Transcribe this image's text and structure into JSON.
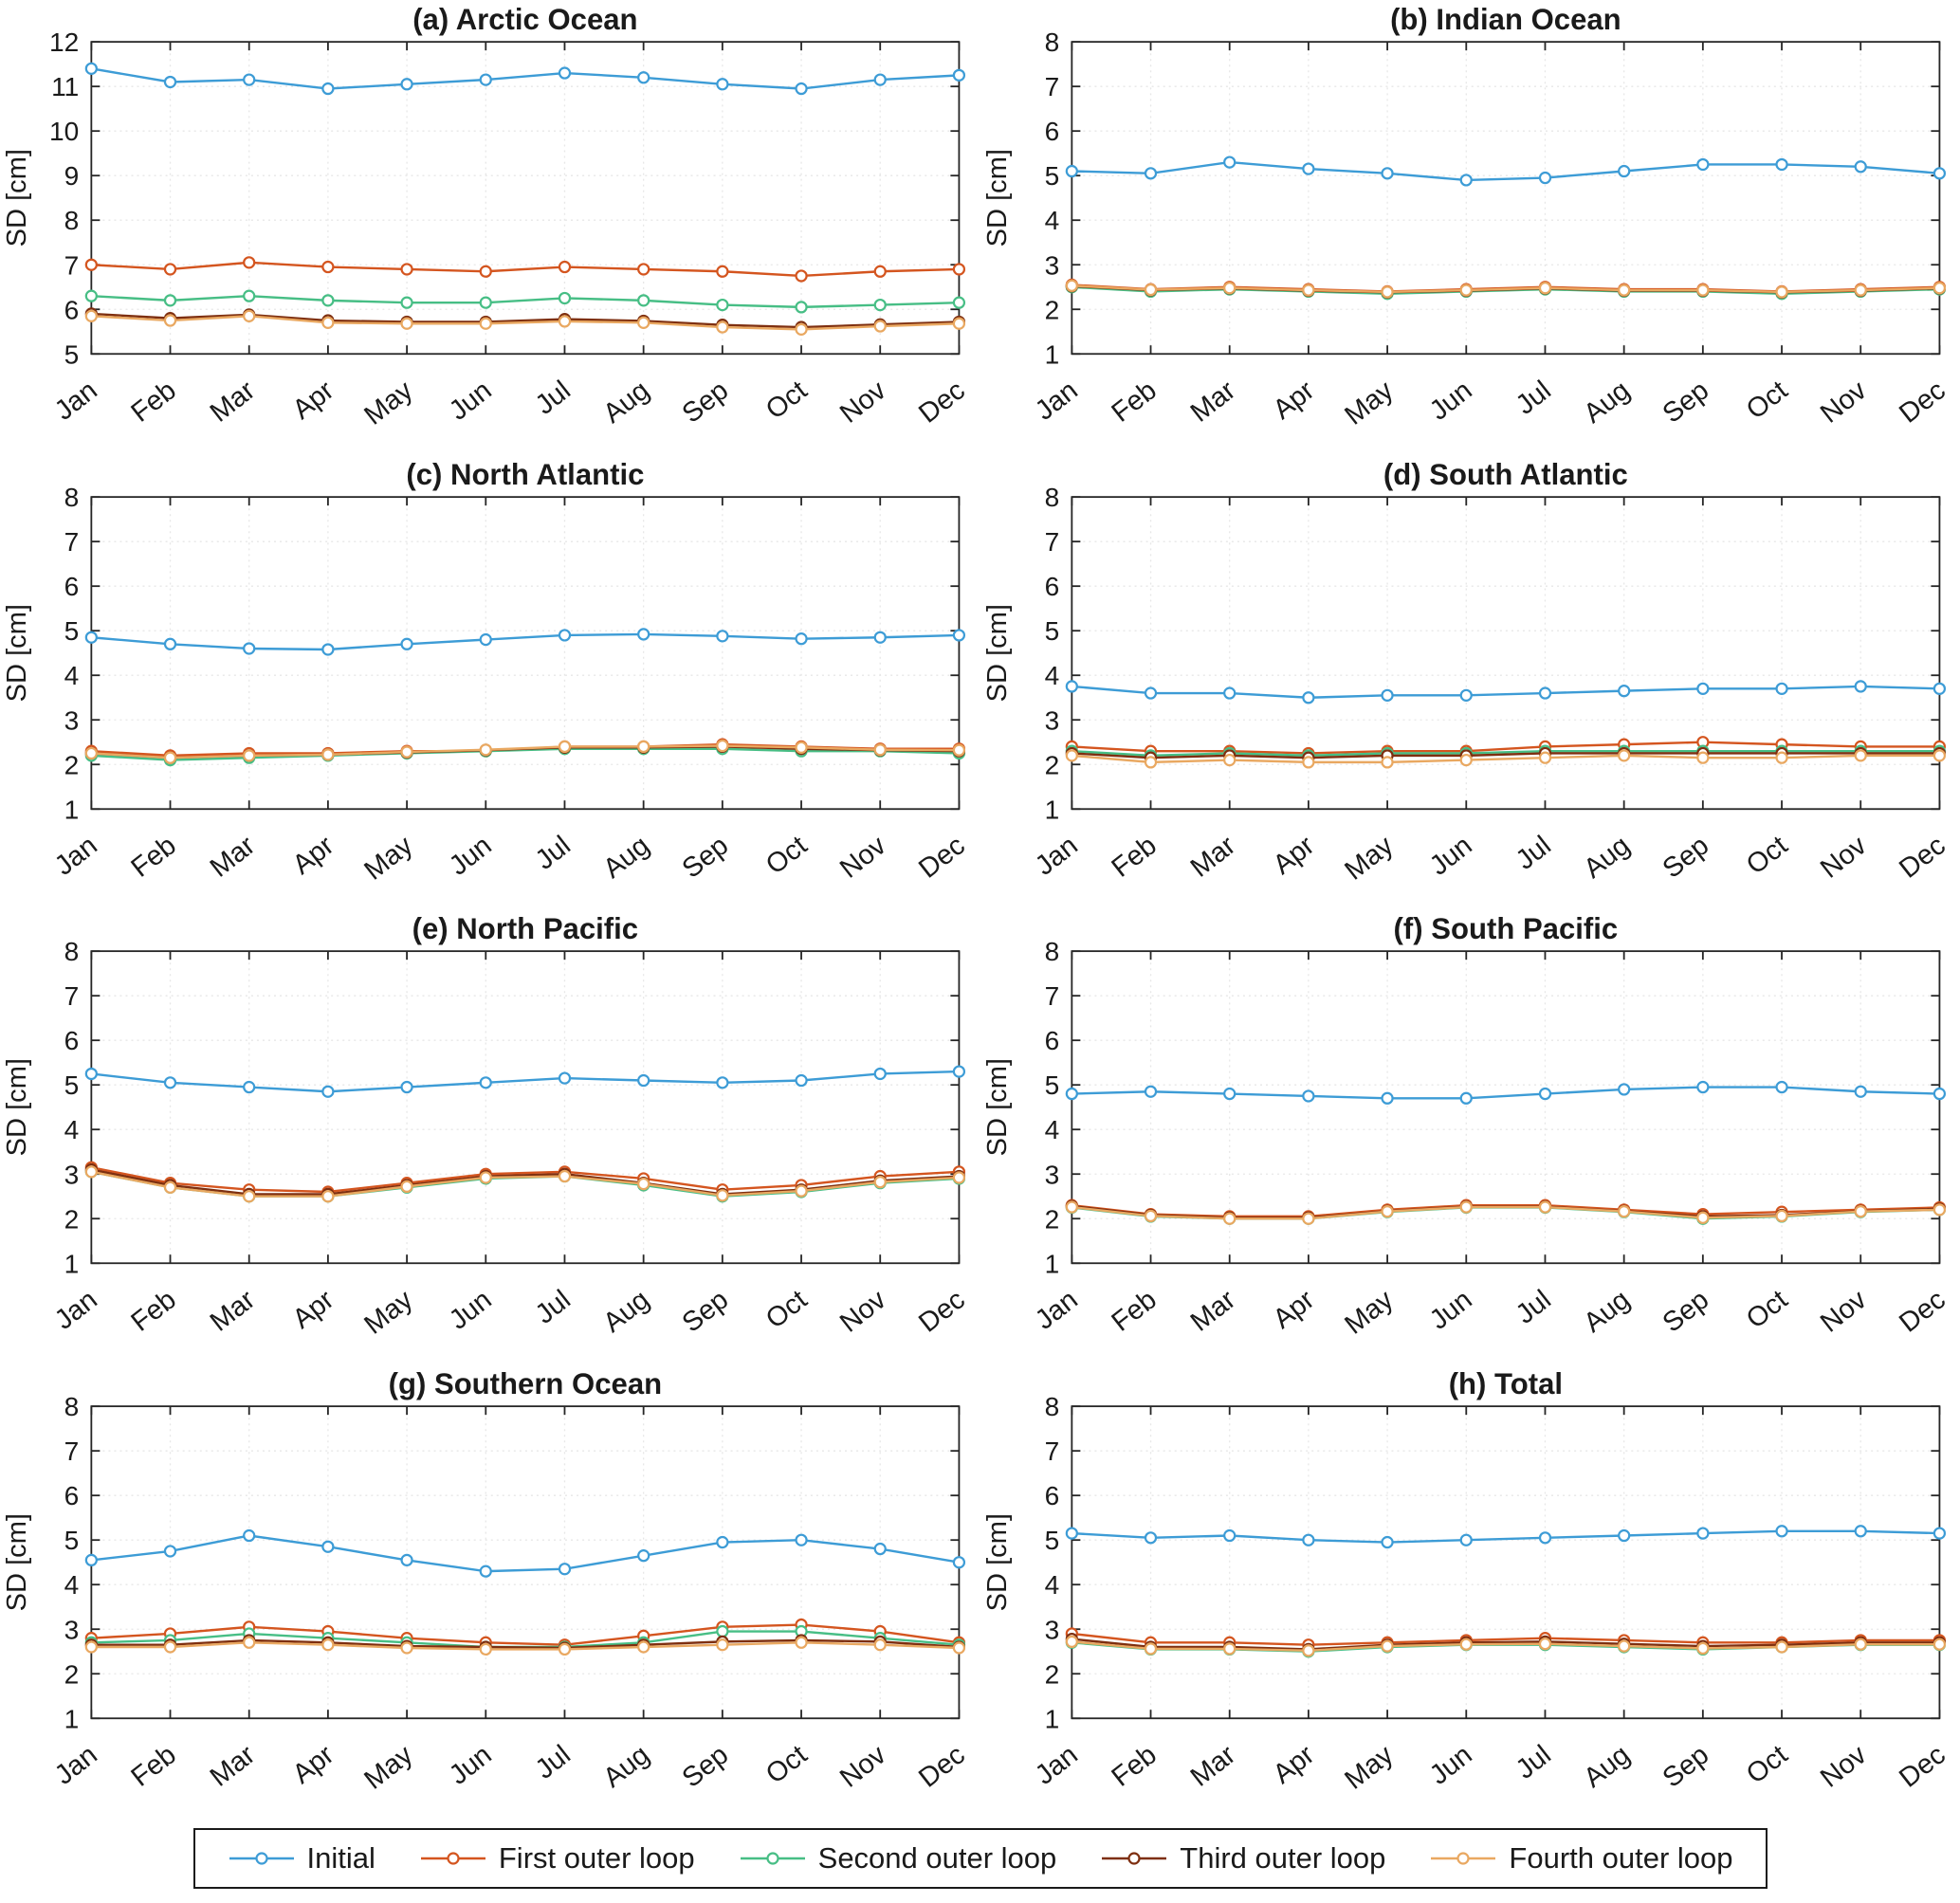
{
  "figure_title": "",
  "ylabel": "SD [cm]",
  "months": [
    "Jan",
    "Feb",
    "Mar",
    "Apr",
    "May",
    "Jun",
    "Jul",
    "Aug",
    "Sep",
    "Oct",
    "Nov",
    "Dec"
  ],
  "legend": {
    "position": "bottom",
    "items": [
      {
        "label": "Initial",
        "color": "#3D9CD6"
      },
      {
        "label": "First outer loop",
        "color": "#D4551F"
      },
      {
        "label": "Second outer loop",
        "color": "#47BE85"
      },
      {
        "label": "Third outer loop",
        "color": "#7E2F10"
      },
      {
        "label": "Fourth outer loop",
        "color": "#E9A861"
      }
    ]
  },
  "chart_data": [
    {
      "type": "line",
      "title": "(a) Arctic Ocean",
      "xlabel": "",
      "ylabel": "SD [cm]",
      "ylim": [
        5,
        12
      ],
      "grid": true,
      "categories": [
        "Jan",
        "Feb",
        "Mar",
        "Apr",
        "May",
        "Jun",
        "Jul",
        "Aug",
        "Sep",
        "Oct",
        "Nov",
        "Dec"
      ],
      "series": [
        {
          "name": "Initial",
          "values": [
            11.4,
            11.1,
            11.15,
            10.95,
            11.05,
            11.15,
            11.3,
            11.2,
            11.05,
            10.95,
            11.15,
            11.25
          ]
        },
        {
          "name": "First outer loop",
          "values": [
            7.0,
            6.9,
            7.05,
            6.95,
            6.9,
            6.85,
            6.95,
            6.9,
            6.85,
            6.75,
            6.85,
            6.9
          ]
        },
        {
          "name": "Second outer loop",
          "values": [
            6.3,
            6.2,
            6.3,
            6.2,
            6.15,
            6.15,
            6.25,
            6.2,
            6.1,
            6.05,
            6.1,
            6.15
          ]
        },
        {
          "name": "Third outer loop",
          "values": [
            5.9,
            5.8,
            5.88,
            5.75,
            5.72,
            5.72,
            5.78,
            5.74,
            5.65,
            5.6,
            5.66,
            5.72
          ]
        },
        {
          "name": "Fourth outer loop",
          "values": [
            5.85,
            5.75,
            5.85,
            5.7,
            5.68,
            5.68,
            5.73,
            5.7,
            5.6,
            5.55,
            5.62,
            5.68
          ]
        }
      ]
    },
    {
      "type": "line",
      "title": "(b) Indian Ocean",
      "xlabel": "",
      "ylabel": "SD [cm]",
      "ylim": [
        1,
        8
      ],
      "grid": true,
      "categories": [
        "Jan",
        "Feb",
        "Mar",
        "Apr",
        "May",
        "Jun",
        "Jul",
        "Aug",
        "Sep",
        "Oct",
        "Nov",
        "Dec"
      ],
      "series": [
        {
          "name": "Initial",
          "values": [
            5.1,
            5.05,
            5.3,
            5.15,
            5.05,
            4.9,
            4.95,
            5.1,
            5.25,
            5.25,
            5.2,
            5.05
          ]
        },
        {
          "name": "First outer loop",
          "values": [
            2.55,
            2.45,
            2.5,
            2.45,
            2.4,
            2.45,
            2.5,
            2.45,
            2.45,
            2.4,
            2.45,
            2.5
          ]
        },
        {
          "name": "Second outer loop",
          "values": [
            2.5,
            2.4,
            2.45,
            2.4,
            2.35,
            2.4,
            2.45,
            2.4,
            2.4,
            2.35,
            2.4,
            2.45
          ]
        },
        {
          "name": "Third outer loop",
          "values": [
            2.52,
            2.43,
            2.47,
            2.42,
            2.38,
            2.42,
            2.47,
            2.42,
            2.42,
            2.38,
            2.42,
            2.47
          ]
        },
        {
          "name": "Fourth outer loop",
          "values": [
            2.53,
            2.44,
            2.48,
            2.43,
            2.39,
            2.43,
            2.48,
            2.43,
            2.43,
            2.39,
            2.43,
            2.48
          ]
        }
      ]
    },
    {
      "type": "line",
      "title": "(c) North Atlantic",
      "xlabel": "",
      "ylabel": "SD [cm]",
      "ylim": [
        1,
        8
      ],
      "grid": true,
      "categories": [
        "Jan",
        "Feb",
        "Mar",
        "Apr",
        "May",
        "Jun",
        "Jul",
        "Aug",
        "Sep",
        "Oct",
        "Nov",
        "Dec"
      ],
      "series": [
        {
          "name": "Initial",
          "values": [
            4.85,
            4.7,
            4.6,
            4.58,
            4.7,
            4.8,
            4.9,
            4.92,
            4.88,
            4.82,
            4.85,
            4.9
          ]
        },
        {
          "name": "First outer loop",
          "values": [
            2.3,
            2.2,
            2.25,
            2.25,
            2.3,
            2.3,
            2.4,
            2.4,
            2.45,
            2.4,
            2.35,
            2.35
          ]
        },
        {
          "name": "Second outer loop",
          "values": [
            2.2,
            2.1,
            2.15,
            2.2,
            2.25,
            2.3,
            2.35,
            2.35,
            2.35,
            2.3,
            2.3,
            2.25
          ]
        },
        {
          "name": "Third outer loop",
          "values": [
            2.25,
            2.15,
            2.2,
            2.22,
            2.27,
            2.32,
            2.38,
            2.38,
            2.4,
            2.35,
            2.32,
            2.3
          ]
        },
        {
          "name": "Fourth outer loop",
          "values": [
            2.25,
            2.15,
            2.2,
            2.22,
            2.28,
            2.33,
            2.4,
            2.4,
            2.42,
            2.38,
            2.33,
            2.32
          ]
        }
      ]
    },
    {
      "type": "line",
      "title": "(d) South Atlantic",
      "xlabel": "",
      "ylabel": "SD [cm]",
      "ylim": [
        1,
        8
      ],
      "grid": true,
      "categories": [
        "Jan",
        "Feb",
        "Mar",
        "Apr",
        "May",
        "Jun",
        "Jul",
        "Aug",
        "Sep",
        "Oct",
        "Nov",
        "Dec"
      ],
      "series": [
        {
          "name": "Initial",
          "values": [
            3.75,
            3.6,
            3.6,
            3.5,
            3.55,
            3.55,
            3.6,
            3.65,
            3.7,
            3.7,
            3.75,
            3.7
          ]
        },
        {
          "name": "First outer loop",
          "values": [
            2.4,
            2.3,
            2.3,
            2.25,
            2.3,
            2.3,
            2.4,
            2.45,
            2.5,
            2.45,
            2.4,
            2.4
          ]
        },
        {
          "name": "Second outer loop",
          "values": [
            2.3,
            2.2,
            2.25,
            2.2,
            2.25,
            2.25,
            2.3,
            2.3,
            2.3,
            2.3,
            2.3,
            2.3
          ]
        },
        {
          "name": "Third outer loop",
          "values": [
            2.25,
            2.15,
            2.2,
            2.15,
            2.2,
            2.2,
            2.25,
            2.25,
            2.25,
            2.25,
            2.25,
            2.25
          ]
        },
        {
          "name": "Fourth outer loop",
          "values": [
            2.2,
            2.05,
            2.1,
            2.05,
            2.05,
            2.1,
            2.15,
            2.2,
            2.15,
            2.15,
            2.2,
            2.2
          ]
        }
      ]
    },
    {
      "type": "line",
      "title": "(e) North Pacific",
      "xlabel": "",
      "ylabel": "SD [cm]",
      "ylim": [
        1,
        8
      ],
      "grid": true,
      "categories": [
        "Jan",
        "Feb",
        "Mar",
        "Apr",
        "May",
        "Jun",
        "Jul",
        "Aug",
        "Sep",
        "Oct",
        "Nov",
        "Dec"
      ],
      "series": [
        {
          "name": "Initial",
          "values": [
            5.25,
            5.05,
            4.95,
            4.85,
            4.95,
            5.05,
            5.15,
            5.1,
            5.05,
            5.1,
            5.25,
            5.3
          ]
        },
        {
          "name": "First outer loop",
          "values": [
            3.15,
            2.8,
            2.65,
            2.6,
            2.8,
            3.0,
            3.05,
            2.9,
            2.65,
            2.75,
            2.95,
            3.05
          ]
        },
        {
          "name": "Second outer loop",
          "values": [
            3.05,
            2.7,
            2.5,
            2.5,
            2.7,
            2.9,
            2.95,
            2.75,
            2.5,
            2.6,
            2.8,
            2.9
          ]
        },
        {
          "name": "Third outer loop",
          "values": [
            3.1,
            2.75,
            2.55,
            2.55,
            2.75,
            2.95,
            3.0,
            2.8,
            2.55,
            2.65,
            2.85,
            2.95
          ]
        },
        {
          "name": "Fourth outer loop",
          "values": [
            3.05,
            2.7,
            2.5,
            2.5,
            2.72,
            2.92,
            2.95,
            2.78,
            2.52,
            2.62,
            2.82,
            2.92
          ]
        }
      ]
    },
    {
      "type": "line",
      "title": "(f) South Pacific",
      "xlabel": "",
      "ylabel": "SD [cm]",
      "ylim": [
        1,
        8
      ],
      "grid": true,
      "categories": [
        "Jan",
        "Feb",
        "Mar",
        "Apr",
        "May",
        "Jun",
        "Jul",
        "Aug",
        "Sep",
        "Oct",
        "Nov",
        "Dec"
      ],
      "series": [
        {
          "name": "Initial",
          "values": [
            4.8,
            4.85,
            4.8,
            4.75,
            4.7,
            4.7,
            4.8,
            4.9,
            4.95,
            4.95,
            4.85,
            4.8
          ]
        },
        {
          "name": "First outer loop",
          "values": [
            2.3,
            2.1,
            2.05,
            2.05,
            2.2,
            2.3,
            2.3,
            2.2,
            2.1,
            2.15,
            2.2,
            2.25
          ]
        },
        {
          "name": "Second outer loop",
          "values": [
            2.25,
            2.05,
            2.0,
            2.0,
            2.15,
            2.25,
            2.25,
            2.15,
            2.0,
            2.05,
            2.15,
            2.2
          ]
        },
        {
          "name": "Third outer loop",
          "values": [
            2.28,
            2.08,
            2.02,
            2.02,
            2.17,
            2.27,
            2.27,
            2.17,
            2.05,
            2.08,
            2.17,
            2.22
          ]
        },
        {
          "name": "Fourth outer loop",
          "values": [
            2.26,
            2.06,
            2.0,
            2.0,
            2.16,
            2.26,
            2.26,
            2.16,
            2.02,
            2.06,
            2.16,
            2.2
          ]
        }
      ]
    },
    {
      "type": "line",
      "title": "(g) Southern Ocean",
      "xlabel": "",
      "ylabel": "SD [cm]",
      "ylim": [
        1,
        8
      ],
      "grid": true,
      "categories": [
        "Jan",
        "Feb",
        "Mar",
        "Apr",
        "May",
        "Jun",
        "Jul",
        "Aug",
        "Sep",
        "Oct",
        "Nov",
        "Dec"
      ],
      "series": [
        {
          "name": "Initial",
          "values": [
            4.55,
            4.75,
            5.1,
            4.85,
            4.55,
            4.3,
            4.35,
            4.65,
            4.95,
            5.0,
            4.8,
            4.5
          ]
        },
        {
          "name": "First outer loop",
          "values": [
            2.8,
            2.9,
            3.05,
            2.95,
            2.8,
            2.7,
            2.65,
            2.85,
            3.05,
            3.1,
            2.95,
            2.7
          ]
        },
        {
          "name": "Second outer loop",
          "values": [
            2.7,
            2.75,
            2.9,
            2.8,
            2.7,
            2.6,
            2.6,
            2.7,
            2.95,
            2.95,
            2.8,
            2.65
          ]
        },
        {
          "name": "Third outer loop",
          "values": [
            2.65,
            2.65,
            2.75,
            2.7,
            2.62,
            2.6,
            2.58,
            2.65,
            2.72,
            2.75,
            2.72,
            2.6
          ]
        },
        {
          "name": "Fourth outer loop",
          "values": [
            2.6,
            2.6,
            2.7,
            2.65,
            2.58,
            2.55,
            2.55,
            2.6,
            2.65,
            2.7,
            2.65,
            2.58
          ]
        }
      ]
    },
    {
      "type": "line",
      "title": "(h) Total",
      "xlabel": "",
      "ylabel": "SD [cm]",
      "ylim": [
        1,
        8
      ],
      "grid": true,
      "categories": [
        "Jan",
        "Feb",
        "Mar",
        "Apr",
        "May",
        "Jun",
        "Jul",
        "Aug",
        "Sep",
        "Oct",
        "Nov",
        "Dec"
      ],
      "series": [
        {
          "name": "Initial",
          "values": [
            5.15,
            5.05,
            5.1,
            5.0,
            4.95,
            5.0,
            5.05,
            5.1,
            5.15,
            5.2,
            5.2,
            5.15
          ]
        },
        {
          "name": "First outer loop",
          "values": [
            2.9,
            2.7,
            2.7,
            2.65,
            2.7,
            2.75,
            2.8,
            2.75,
            2.7,
            2.7,
            2.75,
            2.75
          ]
        },
        {
          "name": "Second outer loop",
          "values": [
            2.7,
            2.55,
            2.55,
            2.5,
            2.6,
            2.65,
            2.65,
            2.6,
            2.55,
            2.6,
            2.65,
            2.65
          ]
        },
        {
          "name": "Third outer loop",
          "values": [
            2.78,
            2.6,
            2.6,
            2.55,
            2.65,
            2.7,
            2.72,
            2.67,
            2.62,
            2.65,
            2.7,
            2.7
          ]
        },
        {
          "name": "Fourth outer loop",
          "values": [
            2.72,
            2.56,
            2.56,
            2.52,
            2.62,
            2.66,
            2.67,
            2.62,
            2.57,
            2.6,
            2.66,
            2.66
          ]
        }
      ]
    }
  ]
}
